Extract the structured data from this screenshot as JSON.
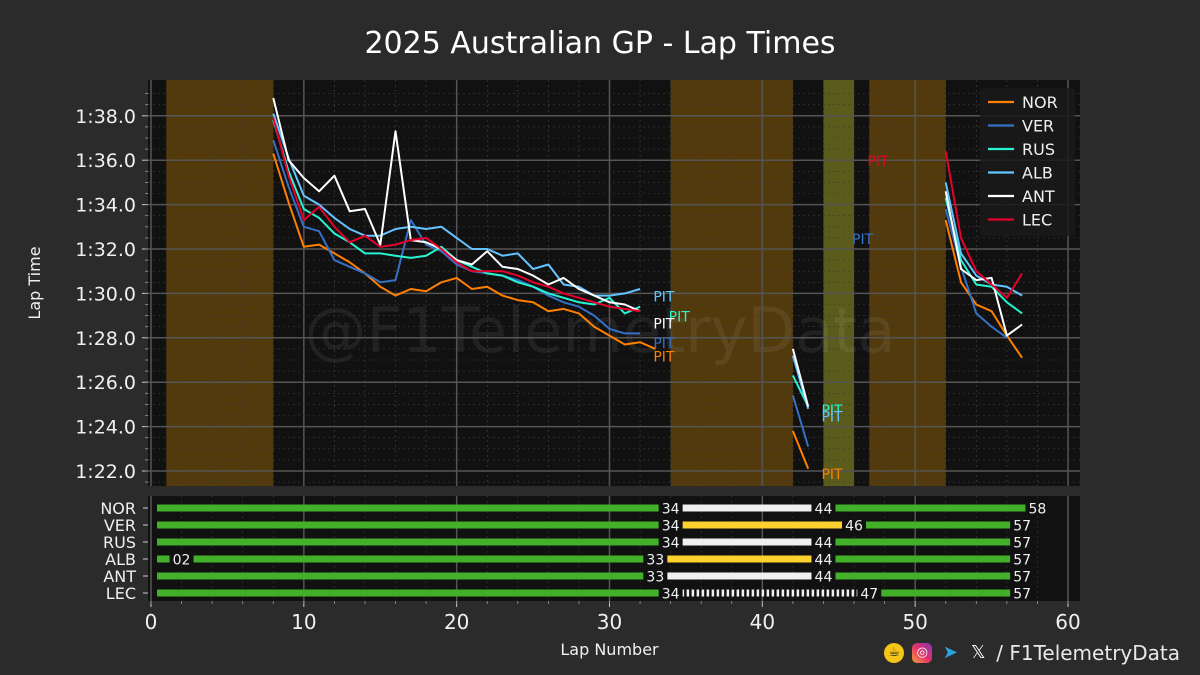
{
  "title": "2025 Australian GP - Lap Times",
  "footer": {
    "handle": "/ F1TelemetryData",
    "watermark": "@F1TelemetryData",
    "icons": [
      "coffee-icon",
      "instagram-icon",
      "telegram-icon",
      "x-icon"
    ]
  },
  "chart_data": [
    {
      "type": "line",
      "title": "2025 Australian GP - Lap Times",
      "ylabel": "Lap Time",
      "xlabel": "",
      "xlim": [
        0,
        61
      ],
      "ylim": [
        81.4,
        99.4
      ],
      "yticks": [
        82,
        84,
        86,
        88,
        90,
        92,
        94,
        96,
        98
      ],
      "ytick_labels": [
        "1:22.0",
        "1:24.0",
        "1:26.0",
        "1:28.0",
        "1:30.0",
        "1:32.0",
        "1:34.0",
        "1:36.0",
        "1:38.0"
      ],
      "grid": true,
      "legend_position": "top-right",
      "shaded_periods": [
        {
          "kind": "sc",
          "from": 1,
          "to": 8,
          "color": "#ffa500"
        },
        {
          "kind": "sc",
          "from": 34,
          "to": 42,
          "color": "#ffa500"
        },
        {
          "kind": "vsc",
          "from": 44,
          "to": 46,
          "color": "#b5b82a"
        },
        {
          "kind": "sc",
          "from": 47,
          "to": 52,
          "color": "#ffa500"
        }
      ],
      "series": [
        {
          "name": "NOR",
          "color": "#ff8000",
          "segments": [
            {
              "x": [
                8,
                9,
                10,
                11,
                12,
                13,
                14,
                15,
                16,
                17,
                18,
                19,
                20,
                21,
                22,
                23,
                24,
                25,
                26,
                27,
                28,
                29,
                30,
                31,
                32,
                33
              ],
              "y": [
                96.3,
                94.1,
                92.1,
                92.2,
                91.8,
                91.4,
                90.9,
                90.3,
                89.9,
                90.2,
                90.1,
                90.5,
                90.7,
                90.2,
                90.3,
                89.9,
                89.7,
                89.6,
                89.2,
                89.3,
                89.1,
                88.5,
                88.1,
                87.7,
                87.8,
                87.5
              ]
            },
            {
              "x": [
                42,
                43
              ],
              "y": [
                83.8,
                82.1
              ]
            },
            {
              "x": [
                52,
                53,
                54,
                55,
                56,
                57
              ],
              "y": [
                93.3,
                90.5,
                89.5,
                89.2,
                88.1,
                87.1
              ]
            }
          ],
          "pit": [
            {
              "x": 33,
              "y": 87.2
            },
            {
              "x": 44,
              "y": 81.9
            }
          ]
        },
        {
          "name": "VER",
          "color": "#3671c6",
          "segments": [
            {
              "x": [
                8,
                9,
                10,
                11,
                12,
                13,
                14,
                15,
                16,
                17,
                18,
                19,
                20,
                21,
                22,
                23,
                24,
                25,
                26,
                27,
                28,
                29,
                30,
                31,
                32
              ],
              "y": [
                96.9,
                94.8,
                93.0,
                92.8,
                91.5,
                91.2,
                90.9,
                90.5,
                90.6,
                93.3,
                92.2,
                91.9,
                91.3,
                91.0,
                90.9,
                90.8,
                90.6,
                90.3,
                89.9,
                89.6,
                89.4,
                89.0,
                88.4,
                88.2,
                88.2
              ]
            },
            {
              "x": [
                42,
                43
              ],
              "y": [
                85.4,
                83.1
              ]
            },
            {
              "x": [
                52,
                53,
                54,
                55,
                56
              ],
              "y": [
                93.8,
                91.2,
                89.1,
                88.5,
                88.0
              ]
            }
          ],
          "pit": [
            {
              "x": 33,
              "y": 87.8
            },
            {
              "x": 46,
              "y": 92.5
            }
          ]
        },
        {
          "name": "RUS",
          "color": "#27f4d2",
          "segments": [
            {
              "x": [
                8,
                9,
                10,
                11,
                12,
                13,
                14,
                15,
                16,
                17,
                18,
                19,
                20,
                21,
                22,
                23,
                24,
                25,
                26,
                27,
                28,
                29,
                30,
                31,
                32
              ],
              "y": [
                97.8,
                95.5,
                93.8,
                93.4,
                92.7,
                92.3,
                91.8,
                91.8,
                91.7,
                91.6,
                91.7,
                92.1,
                91.5,
                91.2,
                90.9,
                90.8,
                90.5,
                90.3,
                90.0,
                89.8,
                89.6,
                89.5,
                89.8,
                89.1,
                89.4
              ]
            },
            {
              "x": [
                42,
                43
              ],
              "y": [
                86.3,
                84.9
              ]
            },
            {
              "x": [
                52,
                53,
                54,
                55,
                56,
                57
              ],
              "y": [
                94.3,
                91.5,
                90.4,
                90.3,
                89.6,
                89.1
              ]
            }
          ],
          "pit": [
            {
              "x": 34,
              "y": 89.0
            },
            {
              "x": 44,
              "y": 84.8
            }
          ]
        },
        {
          "name": "ALB",
          "color": "#64c4ff",
          "segments": [
            {
              "x": [
                8,
                9,
                10,
                11,
                12,
                13,
                14,
                15,
                16,
                17,
                18,
                19,
                20,
                21,
                22,
                23,
                24,
                25,
                26,
                27,
                28,
                29,
                30,
                31,
                32
              ],
              "y": [
                98.1,
                96.1,
                94.4,
                94.0,
                93.4,
                92.9,
                92.6,
                92.6,
                92.9,
                93.0,
                92.9,
                93.0,
                92.5,
                92.0,
                92.0,
                91.7,
                91.8,
                91.1,
                91.3,
                90.4,
                90.3,
                89.9,
                89.9,
                90.0,
                90.2
              ]
            },
            {
              "x": [
                42,
                43
              ],
              "y": [
                87.2,
                84.8
              ]
            },
            {
              "x": [
                52,
                53,
                54,
                55,
                56,
                57
              ],
              "y": [
                95.0,
                91.8,
                90.8,
                90.4,
                90.3,
                89.9
              ]
            }
          ],
          "pit": [
            {
              "x": 33,
              "y": 89.9
            },
            {
              "x": 44,
              "y": 84.5
            }
          ]
        },
        {
          "name": "ANT",
          "color": "#ffffff",
          "segments": [
            {
              "x": [
                8,
                9,
                10,
                11,
                12,
                13,
                14,
                15,
                16,
                17,
                18,
                19,
                20,
                21,
                22,
                23,
                24,
                25,
                26,
                27,
                28,
                29,
                30,
                31,
                32
              ],
              "y": [
                98.8,
                96.0,
                95.2,
                94.6,
                95.3,
                93.7,
                93.8,
                92.2,
                97.3,
                92.4,
                92.3,
                92.0,
                91.5,
                91.3,
                91.9,
                91.2,
                91.1,
                90.8,
                90.4,
                90.7,
                90.2,
                89.9,
                89.6,
                89.5,
                89.2
              ]
            },
            {
              "x": [
                42,
                43
              ],
              "y": [
                87.5,
                84.9
              ]
            },
            {
              "x": [
                52,
                53,
                54,
                55,
                56,
                57
              ],
              "y": [
                94.6,
                91.1,
                90.6,
                90.7,
                88.1,
                88.6
              ]
            }
          ],
          "pit": [
            {
              "x": 33,
              "y": 88.7
            }
          ]
        },
        {
          "name": "LEC",
          "color": "#e8002d",
          "segments": [
            {
              "x": [
                8,
                9,
                10,
                11,
                12,
                13,
                14,
                15,
                16,
                17,
                18,
                19,
                20,
                21,
                22,
                23,
                24,
                25,
                26,
                27,
                28,
                29,
                30,
                31,
                32
              ],
              "y": [
                97.9,
                95.3,
                93.3,
                93.9,
                93.0,
                92.3,
                92.6,
                92.1,
                92.2,
                92.4,
                92.5,
                92.0,
                91.4,
                91.0,
                91.0,
                91.0,
                90.8,
                90.5,
                90.3,
                90.0,
                89.8,
                89.6,
                89.4,
                89.3,
                89.2
              ]
            },
            {
              "x": [
                52,
                53,
                54,
                55,
                56,
                57
              ],
              "y": [
                96.4,
                92.5,
                91.0,
                90.4,
                89.8,
                90.9
              ]
            }
          ],
          "pit": [
            {
              "x": 47,
              "y": 96.0
            }
          ]
        }
      ]
    },
    {
      "type": "bar",
      "title": "",
      "xlabel": "Lap Number",
      "ylabel": "",
      "xlim": [
        0,
        61
      ],
      "xticks": [
        0,
        10,
        20,
        30,
        40,
        50,
        60
      ],
      "drivers": [
        {
          "name": "NOR",
          "stints": [
            {
              "from": 0,
              "to": 34,
              "compound": "inter"
            },
            {
              "from": 34,
              "to": 44,
              "compound": "hard"
            },
            {
              "from": 44,
              "to": 58,
              "compound": "inter"
            }
          ],
          "labels": [
            {
              "x": 34,
              "text": "34"
            },
            {
              "x": 44,
              "text": "44"
            },
            {
              "x": 58,
              "text": "58"
            }
          ]
        },
        {
          "name": "VER",
          "stints": [
            {
              "from": 0,
              "to": 34,
              "compound": "inter"
            },
            {
              "from": 34,
              "to": 46,
              "compound": "medium"
            },
            {
              "from": 46,
              "to": 57,
              "compound": "inter"
            }
          ],
          "labels": [
            {
              "x": 34,
              "text": "34"
            },
            {
              "x": 46,
              "text": "46"
            },
            {
              "x": 57,
              "text": "57"
            }
          ]
        },
        {
          "name": "RUS",
          "stints": [
            {
              "from": 0,
              "to": 34,
              "compound": "inter"
            },
            {
              "from": 34,
              "to": 44,
              "compound": "hard"
            },
            {
              "from": 44,
              "to": 57,
              "compound": "inter"
            }
          ],
          "labels": [
            {
              "x": 34,
              "text": "34"
            },
            {
              "x": 44,
              "text": "44"
            },
            {
              "x": 57,
              "text": "57"
            }
          ]
        },
        {
          "name": "ALB",
          "stints": [
            {
              "from": 0,
              "to": 2,
              "compound": "inter"
            },
            {
              "from": 2,
              "to": 33,
              "compound": "inter"
            },
            {
              "from": 33,
              "to": 44,
              "compound": "medium"
            },
            {
              "from": 44,
              "to": 57,
              "compound": "inter"
            }
          ],
          "labels": [
            {
              "x": 2,
              "text": "02"
            },
            {
              "x": 33,
              "text": "33"
            },
            {
              "x": 44,
              "text": "44"
            },
            {
              "x": 57,
              "text": "57"
            }
          ]
        },
        {
          "name": "ANT",
          "stints": [
            {
              "from": 0,
              "to": 33,
              "compound": "inter"
            },
            {
              "from": 33,
              "to": 44,
              "compound": "hard"
            },
            {
              "from": 44,
              "to": 57,
              "compound": "inter"
            }
          ],
          "labels": [
            {
              "x": 33,
              "text": "33"
            },
            {
              "x": 44,
              "text": "44"
            },
            {
              "x": 57,
              "text": "57"
            }
          ]
        },
        {
          "name": "LEC",
          "stints": [
            {
              "from": 0,
              "to": 34,
              "compound": "inter"
            },
            {
              "from": 34,
              "to": 47,
              "compound": "hard-striped"
            },
            {
              "from": 47,
              "to": 57,
              "compound": "inter"
            }
          ],
          "labels": [
            {
              "x": 34,
              "text": "34"
            },
            {
              "x": 47,
              "text": "47"
            },
            {
              "x": 57,
              "text": "57"
            }
          ]
        }
      ],
      "compound_colors": {
        "inter": "#43b02a",
        "medium": "#ffd12e",
        "hard": "#f0f0f0",
        "hard-striped": "#f0f0f0"
      }
    }
  ]
}
